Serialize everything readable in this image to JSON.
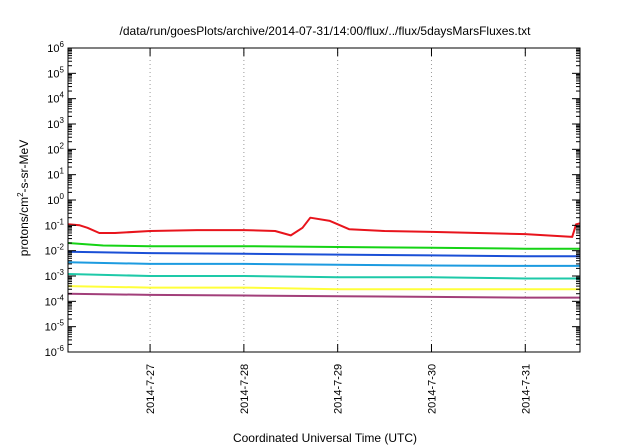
{
  "chart_data": {
    "type": "line",
    "title": "/data/run/goesPlots/archive/2014-07-31/14:00/flux/../flux/5daysMarsFluxes.txt",
    "xlabel": "Coordinated Universal Time (UTC)",
    "ylabel": {
      "prefix": "protons/cm",
      "sup": "2",
      "suffix": "-s-sr-MeV"
    },
    "y_scale": "log",
    "ylim": [
      1e-06,
      1000000.0
    ],
    "y_ticks": [
      {
        "value": 1000000.0,
        "base": "10",
        "exp": "6"
      },
      {
        "value": 100000.0,
        "base": "10",
        "exp": "5"
      },
      {
        "value": 10000.0,
        "base": "10",
        "exp": "4"
      },
      {
        "value": 1000.0,
        "base": "10",
        "exp": "3"
      },
      {
        "value": 100.0,
        "base": "10",
        "exp": "2"
      },
      {
        "value": 10.0,
        "base": "10",
        "exp": "1"
      },
      {
        "value": 1.0,
        "base": "10",
        "exp": "0"
      },
      {
        "value": 0.1,
        "base": "10",
        "exp": "-1"
      },
      {
        "value": 0.01,
        "base": "10",
        "exp": "-2"
      },
      {
        "value": 0.001,
        "base": "10",
        "exp": "-3"
      },
      {
        "value": 0.0001,
        "base": "10",
        "exp": "-4"
      },
      {
        "value": 1e-05,
        "base": "10",
        "exp": "-5"
      },
      {
        "value": 1e-06,
        "base": "10",
        "exp": "-6"
      }
    ],
    "xlim": [
      "2014-07-26T03:00",
      "2014-07-31T14:00"
    ],
    "x_ticks": [
      {
        "value": "2014-07-27T00:00",
        "label": "2014-7-27"
      },
      {
        "value": "2014-07-28T00:00",
        "label": "2014-7-28"
      },
      {
        "value": "2014-07-29T00:00",
        "label": "2014-7-29"
      },
      {
        "value": "2014-07-30T00:00",
        "label": "2014-7-30"
      },
      {
        "value": "2014-07-31T00:00",
        "label": "2014-7-31"
      }
    ],
    "grid": {
      "vertical": true,
      "horizontal": false,
      "style": "dotted"
    },
    "legend": "none",
    "series": [
      {
        "color": "#e8141c",
        "x": [
          "2014-07-26T03:00",
          "2014-07-26T06:00",
          "2014-07-26T08:00",
          "2014-07-26T11:00",
          "2014-07-26T15:00",
          "2014-07-27T00:00",
          "2014-07-27T12:00",
          "2014-07-28T00:00",
          "2014-07-28T08:00",
          "2014-07-28T12:00",
          "2014-07-28T15:00",
          "2014-07-28T17:00",
          "2014-07-28T22:00",
          "2014-07-29T03:00",
          "2014-07-29T12:00",
          "2014-07-30T00:00",
          "2014-07-30T12:00",
          "2014-07-31T00:00",
          "2014-07-31T12:00",
          "2014-07-31T13:00",
          "2014-07-31T14:00"
        ],
        "y": [
          0.11,
          0.1,
          0.08,
          0.05,
          0.05,
          0.06,
          0.065,
          0.065,
          0.06,
          0.04,
          0.08,
          0.2,
          0.15,
          0.07,
          0.06,
          0.055,
          0.05,
          0.045,
          0.035,
          0.11,
          0.12
        ]
      },
      {
        "color": "#15d315",
        "x": [
          "2014-07-26T03:00",
          "2014-07-26T12:00",
          "2014-07-27T00:00",
          "2014-07-28T00:00",
          "2014-07-29T00:00",
          "2014-07-30T00:00",
          "2014-07-31T00:00",
          "2014-07-31T14:00"
        ],
        "y": [
          0.02,
          0.016,
          0.015,
          0.015,
          0.014,
          0.013,
          0.012,
          0.012
        ]
      },
      {
        "color": "#1a4fd6",
        "x": [
          "2014-07-26T03:00",
          "2014-07-27T00:00",
          "2014-07-28T00:00",
          "2014-07-29T00:00",
          "2014-07-30T00:00",
          "2014-07-31T00:00",
          "2014-07-31T14:00"
        ],
        "y": [
          0.009,
          0.008,
          0.0075,
          0.007,
          0.0065,
          0.006,
          0.006
        ]
      },
      {
        "color": "#1c9be0",
        "x": [
          "2014-07-26T03:00",
          "2014-07-27T00:00",
          "2014-07-28T00:00",
          "2014-07-29T00:00",
          "2014-07-30T00:00",
          "2014-07-31T00:00",
          "2014-07-31T14:00"
        ],
        "y": [
          0.0035,
          0.003,
          0.003,
          0.0028,
          0.0026,
          0.0025,
          0.0025
        ]
      },
      {
        "color": "#1ec9a8",
        "x": [
          "2014-07-26T03:00",
          "2014-07-27T00:00",
          "2014-07-28T00:00",
          "2014-07-29T00:00",
          "2014-07-30T00:00",
          "2014-07-31T00:00",
          "2014-07-31T14:00"
        ],
        "y": [
          0.0012,
          0.001,
          0.001,
          0.0009,
          0.0009,
          0.0008,
          0.0008
        ]
      },
      {
        "color": "#ffff3a",
        "x": [
          "2014-07-26T03:00",
          "2014-07-27T00:00",
          "2014-07-28T00:00",
          "2014-07-29T00:00",
          "2014-07-30T00:00",
          "2014-07-31T00:00",
          "2014-07-31T14:00"
        ],
        "y": [
          0.0004,
          0.00035,
          0.00035,
          0.0003,
          0.0003,
          0.0003,
          0.0003
        ]
      },
      {
        "color": "#a23f7a",
        "x": [
          "2014-07-26T03:00",
          "2014-07-27T00:00",
          "2014-07-28T00:00",
          "2014-07-29T00:00",
          "2014-07-30T00:00",
          "2014-07-31T00:00",
          "2014-07-31T14:00"
        ],
        "y": [
          0.0002,
          0.00018,
          0.00017,
          0.00016,
          0.00015,
          0.00014,
          0.00014
        ]
      }
    ]
  }
}
